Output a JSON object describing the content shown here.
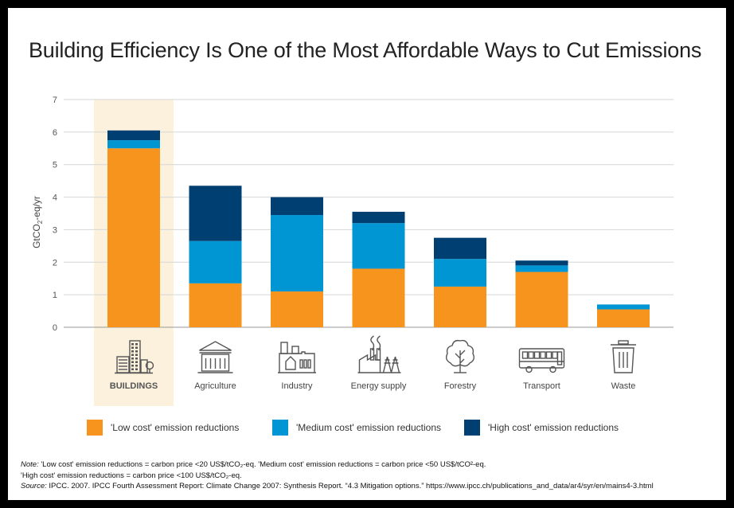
{
  "title": "Building Efficiency Is One of the Most Affordable Ways to Cut Emissions",
  "chart_data": {
    "type": "bar",
    "stacked": true,
    "categories": [
      "BUILDINGS",
      "Agriculture",
      "Industry",
      "Energy supply",
      "Forestry",
      "Transport",
      "Waste"
    ],
    "highlighted_category": "BUILDINGS",
    "series": [
      {
        "name": "'Low cost' emission reductions",
        "color": "#f7941d",
        "values": [
          5.5,
          1.35,
          1.1,
          1.8,
          1.25,
          1.7,
          0.55
        ]
      },
      {
        "name": "'Medium cost' emission reductions",
        "color": "#0095d3",
        "values": [
          0.25,
          1.3,
          2.35,
          1.4,
          0.85,
          0.2,
          0.15
        ]
      },
      {
        "name": "'High cost' emission reductions",
        "color": "#003f72",
        "values": [
          0.3,
          1.7,
          0.55,
          0.35,
          0.65,
          0.15,
          0.0
        ]
      }
    ],
    "ylabel": "GtCO2-eq/yr",
    "ylim": [
      0,
      7
    ],
    "yticks": [
      0,
      1,
      2,
      3,
      4,
      5,
      6,
      7
    ],
    "grid": true,
    "legend_position": "bottom",
    "icons": [
      "buildings-icon",
      "agriculture-icon",
      "industry-icon",
      "energy-supply-icon",
      "forestry-icon",
      "transport-icon",
      "waste-icon"
    ]
  },
  "notes": {
    "note_label": "Note:",
    "note_text": " 'Low cost' emission reductions = carbon price <20 US$/tCO₂-eq. 'Medium cost' emission reductions =  carbon price <50 US$/tCO²-eq.",
    "high_cost_line": "'High cost' emission reductions = carbon price <100 US$/tCO₂-eq.",
    "source_label": "Source:",
    "source_text": " IPCC. 2007. IPCC Fourth Assessment Report: Climate Change 2007: Synthesis Report. “4.3 Mitigation options.” https://www.ipcc.ch/publications_and_data/ar4/syr/en/mains4-3.html"
  }
}
